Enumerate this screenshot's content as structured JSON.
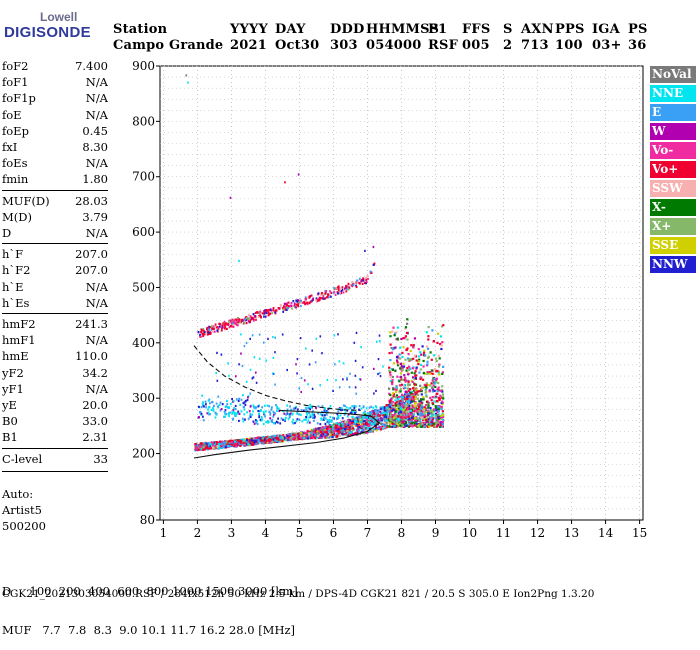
{
  "logo": {
    "line1": "Lowell",
    "line2": "DIGISONDE"
  },
  "header": {
    "cols": [
      {
        "label": "Station",
        "value": "Campo Grande"
      },
      {
        "label": "YYYY",
        "value": "2021"
      },
      {
        "label": "DAY",
        "value": "Oct30"
      },
      {
        "label": "DDD",
        "value": "303"
      },
      {
        "label": "HHMMSS",
        "value": "054000"
      },
      {
        "label": "P1",
        "value": "RSF"
      },
      {
        "label": "FFS",
        "value": "005"
      },
      {
        "label": "S",
        "value": "2"
      },
      {
        "label": "AXN",
        "value": "713"
      },
      {
        "label": "PPS",
        "value": "100"
      },
      {
        "label": "IGA",
        "value": "03+"
      },
      {
        "label": "PS",
        "value": "36"
      }
    ]
  },
  "params": {
    "g1": [
      {
        "name": "foF2",
        "value": "7.400"
      },
      {
        "name": "foF1",
        "value": "N/A"
      },
      {
        "name": "foF1p",
        "value": "N/A"
      },
      {
        "name": "foE",
        "value": "N/A"
      },
      {
        "name": "foEp",
        "value": "0.45"
      },
      {
        "name": "fxI",
        "value": "8.30"
      },
      {
        "name": "foEs",
        "value": "N/A"
      },
      {
        "name": "fmin",
        "value": "1.80"
      }
    ],
    "g2": [
      {
        "name": "MUF(D)",
        "value": "28.03"
      },
      {
        "name": "M(D)",
        "value": "3.79"
      },
      {
        "name": "D",
        "value": "N/A"
      }
    ],
    "g3": [
      {
        "name": "h`F",
        "value": "207.0"
      },
      {
        "name": "h`F2",
        "value": "207.0"
      },
      {
        "name": "h`E",
        "value": "N/A"
      },
      {
        "name": "h`Es",
        "value": "N/A"
      }
    ],
    "g4": [
      {
        "name": "hmF2",
        "value": "241.3"
      },
      {
        "name": "hmF1",
        "value": "N/A"
      },
      {
        "name": "hmE",
        "value": "110.0"
      },
      {
        "name": "yF2",
        "value": "34.2"
      },
      {
        "name": "yF1",
        "value": "N/A"
      },
      {
        "name": "yE",
        "value": "20.0"
      },
      {
        "name": "B0",
        "value": "33.0"
      },
      {
        "name": "B1",
        "value": "2.31"
      }
    ],
    "g5": [
      {
        "name": "C-level",
        "value": "33"
      }
    ]
  },
  "auto": [
    "Auto:",
    "Artist5",
    "500200"
  ],
  "legend": [
    {
      "label": "NoVal",
      "color": "#7a7a7a"
    },
    {
      "label": "NNE",
      "color": "#00e5f0"
    },
    {
      "label": "E",
      "color": "#3aa0f5"
    },
    {
      "label": "W",
      "color": "#b000b0"
    },
    {
      "label": "Vo-",
      "color": "#f02aa0"
    },
    {
      "label": "Vo+",
      "color": "#f00030"
    },
    {
      "label": "SSW",
      "color": "#f7b0b0"
    },
    {
      "label": "X-",
      "color": "#007a00"
    },
    {
      "label": "X+",
      "color": "#86b86a"
    },
    {
      "label": "SSE",
      "color": "#d0d000"
    },
    {
      "label": "NNW",
      "color": "#2020d0"
    }
  ],
  "bottom": {
    "line1": "D     100  200  400  600  800 1000 1500 3000 [km]",
    "line2": "MUF   7.7  7.8  8.3  9.0 10.1 11.7 16.2 28.0 [MHz]",
    "line3": "CGK21_2021303054000.RSF / 284fx512h 50 kHz 2.5 km / DPS-4D CGK21 821 / 20.5 S 305.0 E Ion2Png 1.3.20"
  },
  "chart_data": {
    "type": "scatter",
    "xlabel": "",
    "ylabel": "",
    "xlim": [
      0.9,
      15.1
    ],
    "ylim": [
      80,
      900
    ],
    "xticks": [
      1,
      2,
      3,
      4,
      5,
      6,
      7,
      8,
      9,
      10,
      11,
      12,
      13,
      14,
      15
    ],
    "yticks": [
      80,
      200,
      300,
      400,
      500,
      600,
      700,
      800,
      900
    ],
    "ytick_labels": [
      "80",
      "200",
      "300",
      "400",
      "500",
      "600",
      "700",
      "800",
      "900"
    ],
    "grid": true,
    "profile_solid": [
      [
        1.9,
        192
      ],
      [
        2.5,
        198
      ],
      [
        3.5,
        206
      ],
      [
        4.5,
        213
      ],
      [
        5.5,
        220
      ],
      [
        6.3,
        228
      ],
      [
        7.0,
        240
      ],
      [
        7.35,
        255
      ],
      [
        7.1,
        268
      ],
      [
        6.4,
        272
      ],
      [
        5.4,
        275
      ],
      [
        4.4,
        278
      ]
    ],
    "profile_dashed": [
      [
        1.9,
        395
      ],
      [
        2.3,
        365
      ],
      [
        2.8,
        340
      ],
      [
        3.4,
        320
      ],
      [
        4.0,
        305
      ],
      [
        4.6,
        295
      ],
      [
        5.2,
        287
      ],
      [
        5.8,
        282
      ],
      [
        6.3,
        279
      ],
      [
        6.8,
        278
      ]
    ],
    "series": [
      {
        "name": "F2 trace",
        "points": [
          [
            1.9,
            212
          ],
          [
            2.5,
            215
          ],
          [
            3.0,
            218
          ],
          [
            3.5,
            221
          ],
          [
            4.0,
            225
          ],
          [
            4.5,
            228
          ],
          [
            5.0,
            232
          ],
          [
            5.5,
            236
          ],
          [
            6.0,
            240
          ],
          [
            6.5,
            245
          ],
          [
            7.0,
            252
          ],
          [
            7.5,
            262
          ],
          [
            8.0,
            278
          ],
          [
            8.5,
            300
          ],
          [
            8.8,
            330
          ],
          [
            9.0,
            380
          ],
          [
            9.2,
            460
          ]
        ]
      },
      {
        "name": "2nd hop",
        "points": [
          [
            2.0,
            418
          ],
          [
            2.5,
            428
          ],
          [
            3.0,
            437
          ],
          [
            3.5,
            446
          ],
          [
            4.0,
            456
          ],
          [
            4.5,
            465
          ],
          [
            5.0,
            475
          ],
          [
            5.5,
            484
          ],
          [
            6.0,
            494
          ],
          [
            6.5,
            505
          ],
          [
            7.0,
            518
          ],
          [
            7.2,
            545
          ]
        ]
      }
    ]
  }
}
